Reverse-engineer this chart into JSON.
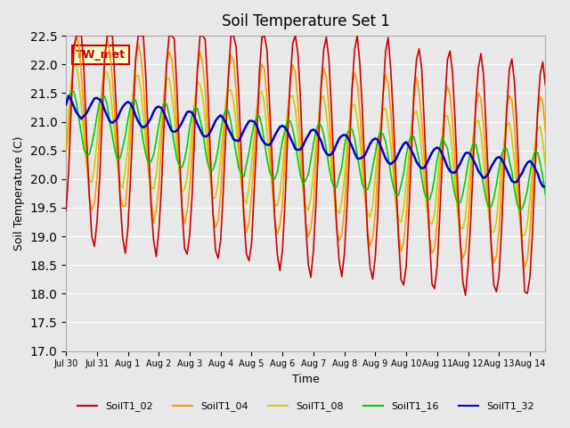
{
  "title": "Soil Temperature Set 1",
  "xlabel": "Time",
  "ylabel": "Soil Temperature (C)",
  "ylim": [
    17.0,
    22.5
  ],
  "yticks": [
    17.0,
    17.5,
    18.0,
    18.5,
    19.0,
    19.5,
    20.0,
    20.5,
    21.0,
    21.5,
    22.0,
    22.5
  ],
  "bg_color": "#e8e8e8",
  "plot_bg_color": "#e8e8e8",
  "series_colors": {
    "SoilT1_02": "#cc0000",
    "SoilT1_04": "#ff9900",
    "SoilT1_08": "#cccc00",
    "SoilT1_16": "#00cc00",
    "SoilT1_32": "#0000cc"
  },
  "annotation_text": "TW_met",
  "annotation_bg": "#ffffcc",
  "annotation_border": "#cc0000",
  "num_days": 15.5,
  "hours_per_day": 24,
  "dt_hours": 2,
  "tick_positions": [
    0,
    1,
    2,
    3,
    4,
    5,
    6,
    7,
    8,
    9,
    10,
    11,
    12,
    13,
    14,
    15
  ],
  "tick_labels": [
    "Jul 30",
    "Jul 31",
    "Aug 1",
    "Aug 2",
    "Aug 3",
    "Aug 4",
    "Aug 5",
    "Aug 6",
    "Aug 7",
    "Aug 8",
    "Aug 9",
    "Aug 10",
    "Aug 11",
    "Aug 12",
    "Aug 13",
    "Aug 14"
  ]
}
